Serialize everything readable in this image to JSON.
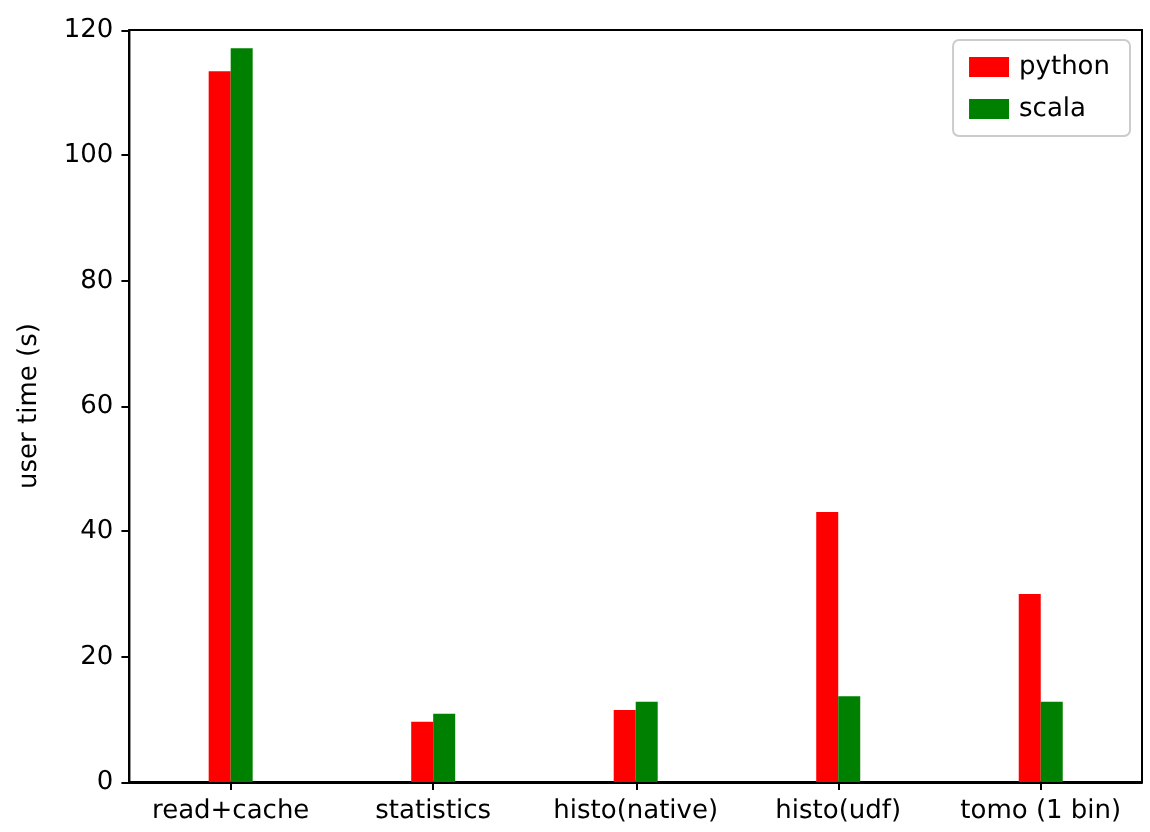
{
  "chart_data": {
    "type": "bar",
    "ylabel": "user time (s)",
    "categories": [
      "read+cache",
      "statistics",
      "histo(native)",
      "histo(udf)",
      "tomo (1 bin)"
    ],
    "series": [
      {
        "name": "python",
        "color": "#ff0000",
        "values": [
          113.4,
          9.6,
          11.5,
          43.1,
          30
        ]
      },
      {
        "name": "scala",
        "color": "#008000",
        "values": [
          117.1,
          10.9,
          12.8,
          13.7,
          12.8
        ]
      }
    ],
    "ylim": [
      0,
      120
    ],
    "yticks": [
      0,
      20,
      40,
      60,
      80,
      100,
      120
    ],
    "grid": false,
    "legend": "top right"
  }
}
